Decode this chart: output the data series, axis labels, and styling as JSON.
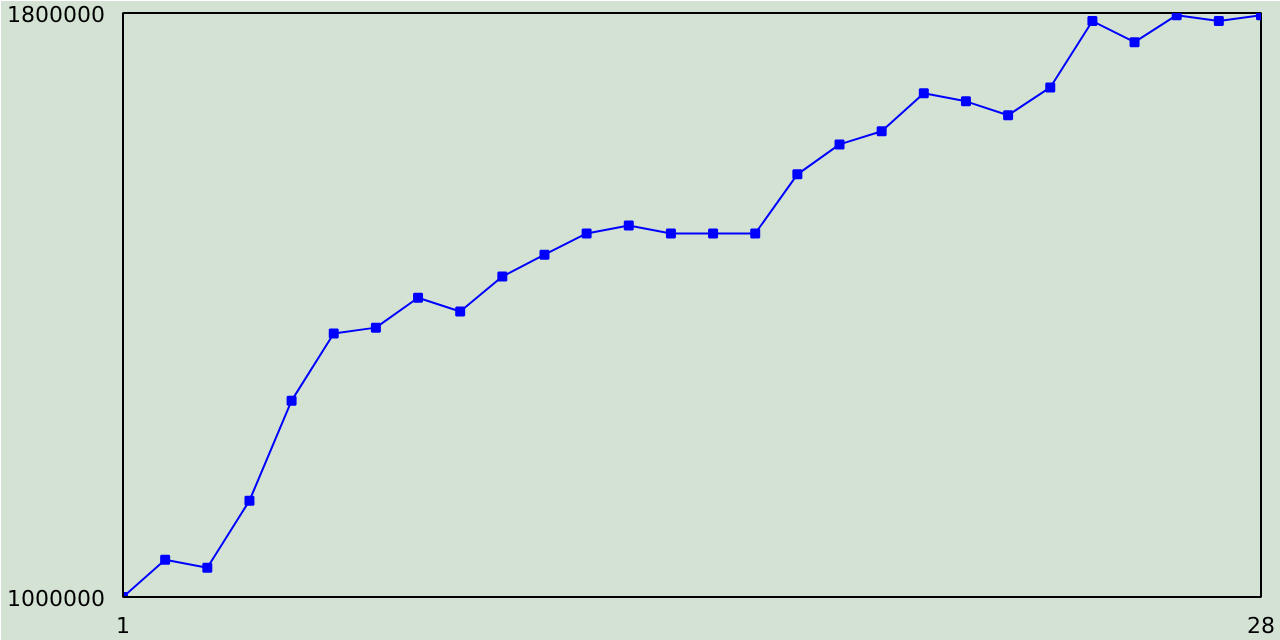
{
  "chart_data": {
    "type": "line",
    "x": [
      1,
      2,
      3,
      4,
      5,
      6,
      7,
      8,
      9,
      10,
      11,
      12,
      13,
      14,
      15,
      16,
      17,
      18,
      19,
      20,
      21,
      22,
      23,
      24,
      25,
      26,
      27,
      28
    ],
    "series": [
      {
        "color": "#0000ff",
        "values": [
          1000000,
          1051000,
          1040000,
          1132000,
          1269000,
          1361000,
          1369000,
          1410000,
          1391000,
          1439000,
          1469000,
          1498000,
          1509000,
          1498000,
          1498000,
          1498000,
          1579000,
          1620000,
          1638000,
          1690000,
          1679000,
          1660000,
          1698000,
          1789000,
          1760000,
          1797000,
          1789000,
          1797000
        ]
      }
    ],
    "xlim": [
      1,
      28
    ],
    "xticks": [
      1,
      28
    ],
    "ylim": [
      1000000,
      1800000
    ],
    "yticks": [
      1000000,
      1800000
    ],
    "marker": "square",
    "line_style": "solid"
  }
}
